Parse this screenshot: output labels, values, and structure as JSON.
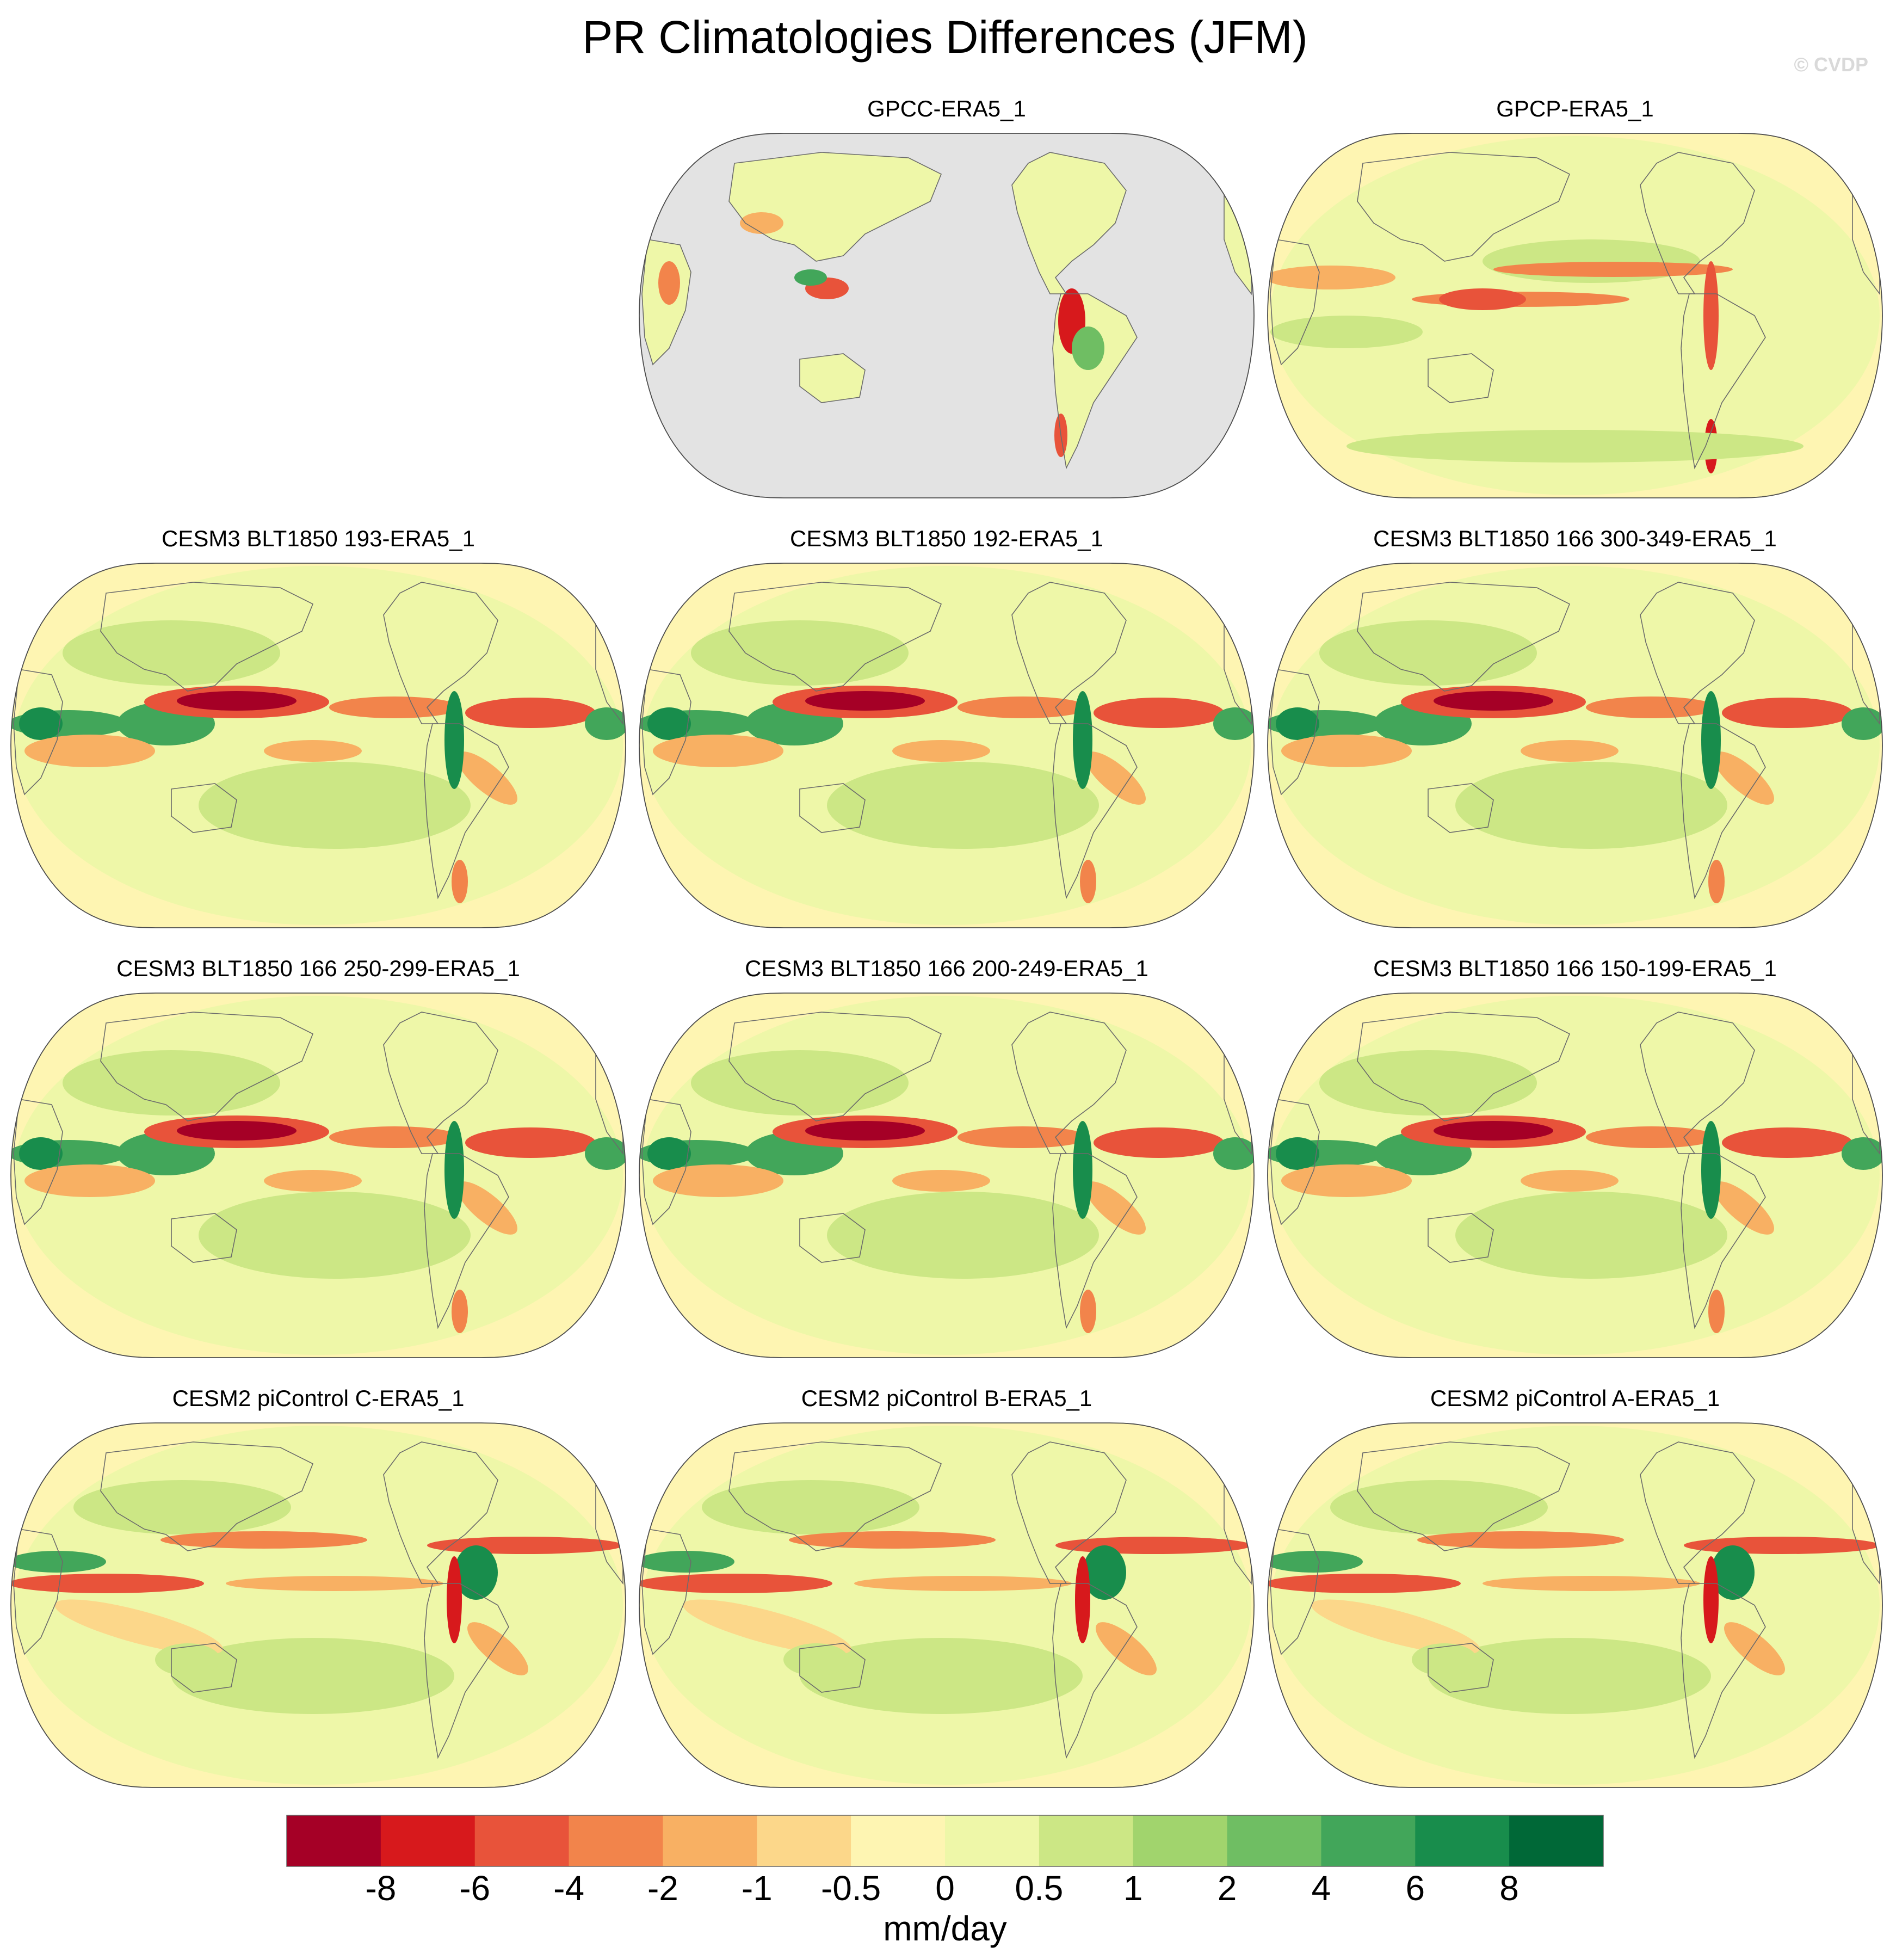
{
  "chart_data": {
    "type": "heatmap",
    "title": "PR Climatologies Differences (JFM)",
    "credit": "© CVDP",
    "projection": "Robinson, centered on the Pacific",
    "units": "mm/day",
    "colorbar": {
      "levels": [
        -8,
        -6,
        -4,
        -2,
        -1,
        -0.5,
        0,
        0.5,
        1,
        2,
        4,
        6,
        8
      ],
      "tick_labels": [
        "-8",
        "-6",
        "-4",
        "-2",
        "-1",
        "-0.5",
        "0",
        "0.5",
        "1",
        "2",
        "4",
        "6",
        "8"
      ],
      "colors": [
        "#a50026",
        "#d7191c",
        "#e8533a",
        "#f2844b",
        "#f8b063",
        "#fcd78a",
        "#fef5b2",
        "#eef7a8",
        "#cce785",
        "#a1d46d",
        "#6fbe63",
        "#42a65a",
        "#188d4c",
        "#006837"
      ]
    },
    "panels": [
      {
        "title": "GPCC-ERA5_1",
        "land_only": true,
        "summary": "differences mostly between -0.5 and 0.5 mm/day over land; strong positive and negative patches over the Maritime Continent and the South American Andes; ocean masked (grey)"
      },
      {
        "title": "GPCP-ERA5_1",
        "land_only": false,
        "summary": "negative (-2 to -6) band along the Pacific ITCZ and SPCZ; weak positive (0.5 to 1) over most ocean"
      },
      {
        "title": "CESM3 BLT1850 193-ERA5_1",
        "land_only": false,
        "summary": "strong negative (down to -8) north equatorial Pacific and Atlantic ITCZ; strong positive (up to 8) equatorial Indian Ocean and Maritime Continent; negative diagonal bands in the south Pacific"
      },
      {
        "title": "CESM3 BLT1850 192-ERA5_1",
        "land_only": false,
        "summary": "negative north equatorial Pacific and Atlantic; positive Indian Ocean equatorial band; negative southern Indian Ocean"
      },
      {
        "title": "CESM3 BLT1850 166 300-349-ERA5_1",
        "land_only": false,
        "summary": "strong negative western-central north equatorial Pacific; positive equatorial Indian Ocean and east Atlantic"
      },
      {
        "title": "CESM3 BLT1850 166 250-299-ERA5_1",
        "land_only": false,
        "summary": "strong negative west Pacific ITCZ; positive Indian Ocean; negative south Indian and south Pacific diagonal"
      },
      {
        "title": "CESM3 BLT1850 166 200-249-ERA5_1",
        "land_only": false,
        "summary": "strong negative west Pacific ITCZ; positive Indian Ocean and Maritime Continent"
      },
      {
        "title": "CESM3 BLT1850 166 150-199-ERA5_1",
        "land_only": false,
        "summary": "strong negative west Pacific ITCZ and Atlantic; positive Indian Ocean band"
      },
      {
        "title": "CESM2 piControl C-ERA5_1",
        "land_only": false,
        "summary": "double-ITCZ pattern: negative equatorial bands north and south of the equator, positive Indian Ocean and Amazon"
      },
      {
        "title": "CESM2 piControl B-ERA5_1",
        "land_only": false,
        "summary": "double-ITCZ pattern similar to piControl C"
      },
      {
        "title": "CESM2 piControl A-ERA5_1",
        "land_only": false,
        "summary": "double-ITCZ pattern similar to piControl C"
      }
    ]
  }
}
